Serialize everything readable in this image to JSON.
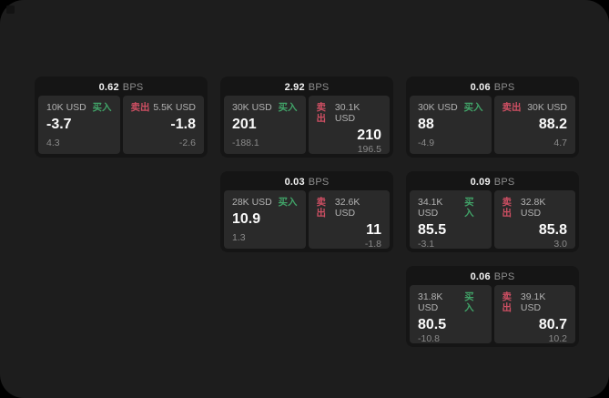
{
  "labels": {
    "bps": "BPS",
    "buy": "买入",
    "sell": "卖出"
  },
  "colors": {
    "window_bg": "#1d1d1d",
    "card_bg": "#151515",
    "panel_bg": "#2a2a2a",
    "buy_green": "#41a368",
    "sell_red": "#ce4f63"
  },
  "cards": [
    {
      "bps": "0.62",
      "col": 1,
      "row": 1,
      "buy": {
        "amount": "10K USD",
        "price": "-3.7",
        "delta": "4.3"
      },
      "sell": {
        "amount": "5.5K USD",
        "price": "-1.8",
        "delta": "-2.6"
      }
    },
    {
      "bps": "2.92",
      "col": 2,
      "row": 1,
      "buy": {
        "amount": "30K USD",
        "price": "201",
        "delta": "-188.1"
      },
      "sell": {
        "amount": "30.1K USD",
        "price": "210",
        "delta": "196.5"
      }
    },
    {
      "bps": "0.06",
      "col": 3,
      "row": 1,
      "buy": {
        "amount": "30K USD",
        "price": "88",
        "delta": "-4.9"
      },
      "sell": {
        "amount": "30K USD",
        "price": "88.2",
        "delta": "4.7"
      }
    },
    {
      "bps": "0.03",
      "col": 2,
      "row": 2,
      "buy": {
        "amount": "28K USD",
        "price": "10.9",
        "delta": "1.3"
      },
      "sell": {
        "amount": "32.6K USD",
        "price": "11",
        "delta": "-1.8"
      }
    },
    {
      "bps": "0.09",
      "col": 3,
      "row": 2,
      "buy": {
        "amount": "34.1K USD",
        "price": "85.5",
        "delta": "-3.1"
      },
      "sell": {
        "amount": "32.8K USD",
        "price": "85.8",
        "delta": "3.0"
      }
    },
    {
      "bps": "0.06",
      "col": 3,
      "row": 3,
      "buy": {
        "amount": "31.8K USD",
        "price": "80.5",
        "delta": "-10.8"
      },
      "sell": {
        "amount": "39.1K USD",
        "price": "80.7",
        "delta": "10.2"
      }
    }
  ]
}
